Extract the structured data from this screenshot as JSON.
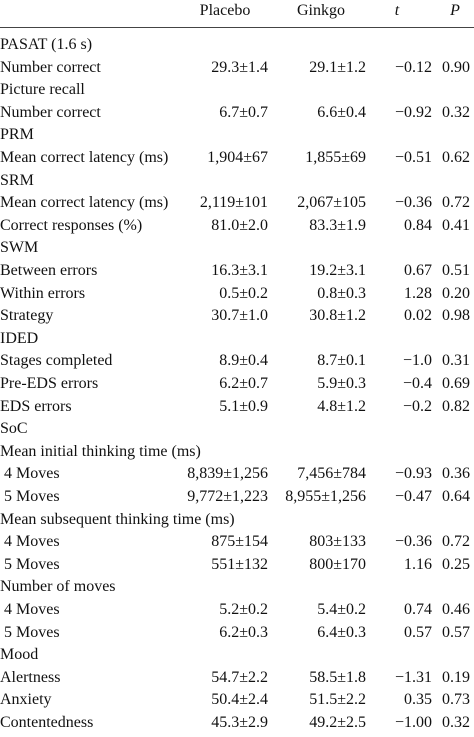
{
  "table": {
    "header": [
      "Placebo",
      "Ginkgo",
      "t",
      "P"
    ],
    "rows": [
      [
        "PASAT (1.6 s)"
      ],
      [
        "Number correct",
        "29.3±1.4",
        "29.1±1.2",
        "−0.12",
        "0.90"
      ],
      [
        "Picture recall"
      ],
      [
        "Number correct",
        "6.7±0.7",
        "6.6±0.4",
        "−0.92",
        "0.32"
      ],
      [
        "PRM"
      ],
      [
        "Mean correct latency (ms)",
        "1,904±67",
        "1,855±69",
        "−0.51",
        "0.62"
      ],
      [
        "SRM"
      ],
      [
        "Mean correct latency (ms)",
        "2,119±101",
        "2,067±105",
        "−0.36",
        "0.72"
      ],
      [
        "Correct responses (%)",
        "81.0±2.0",
        "83.3±1.9",
        "0.84",
        "0.41"
      ],
      [
        "SWM"
      ],
      [
        "Between errors",
        "16.3±3.1",
        "19.2±3.1",
        "0.67",
        "0.51"
      ],
      [
        "Within errors",
        "0.5±0.2",
        "0.8±0.3",
        "1.28",
        "0.20"
      ],
      [
        "Strategy",
        "30.7±1.0",
        "30.8±1.2",
        "0.02",
        "0.98"
      ],
      [
        "IDED"
      ],
      [
        "Stages completed",
        "8.9±0.4",
        "8.7±0.1",
        "−1.0",
        "0.31"
      ],
      [
        "Pre-EDS errors",
        "6.2±0.7",
        "5.9±0.3",
        "−0.4",
        "0.69"
      ],
      [
        "EDS errors",
        "5.1±0.9",
        "4.8±1.2",
        "−0.2",
        "0.82"
      ],
      [
        "SoC"
      ],
      [
        "Mean initial thinking time (ms)"
      ],
      [
        " 4 Moves",
        "8,839±1,256",
        "7,456±784",
        "−0.93",
        "0.36"
      ],
      [
        " 5 Moves",
        "9,772±1,223",
        "8,955±1,256",
        "−0.47",
        "0.64"
      ],
      [
        "Mean subsequent thinking time (ms)"
      ],
      [
        " 4 Moves",
        "875±154",
        "803±133",
        "−0.36",
        "0.72"
      ],
      [
        " 5 Moves",
        "551±132",
        "800±170",
        "1.16",
        "0.25"
      ],
      [
        "Number of moves"
      ],
      [
        " 4 Moves",
        "5.2±0.2",
        "5.4±0.2",
        "0.74",
        "0.46"
      ],
      [
        " 5 Moves",
        "6.2±0.3",
        "6.4±0.3",
        "0.57",
        "0.57"
      ],
      [
        "Mood"
      ],
      [
        "Alertness",
        "54.7±2.2",
        "58.5±1.8",
        "−1.31",
        "0.19"
      ],
      [
        "Anxiety",
        "50.4±2.4",
        "51.5±2.2",
        "0.35",
        "0.73"
      ],
      [
        "Contentedness",
        "45.3±2.9",
        "49.2±2.5",
        "−1.00",
        "0.32"
      ]
    ]
  }
}
